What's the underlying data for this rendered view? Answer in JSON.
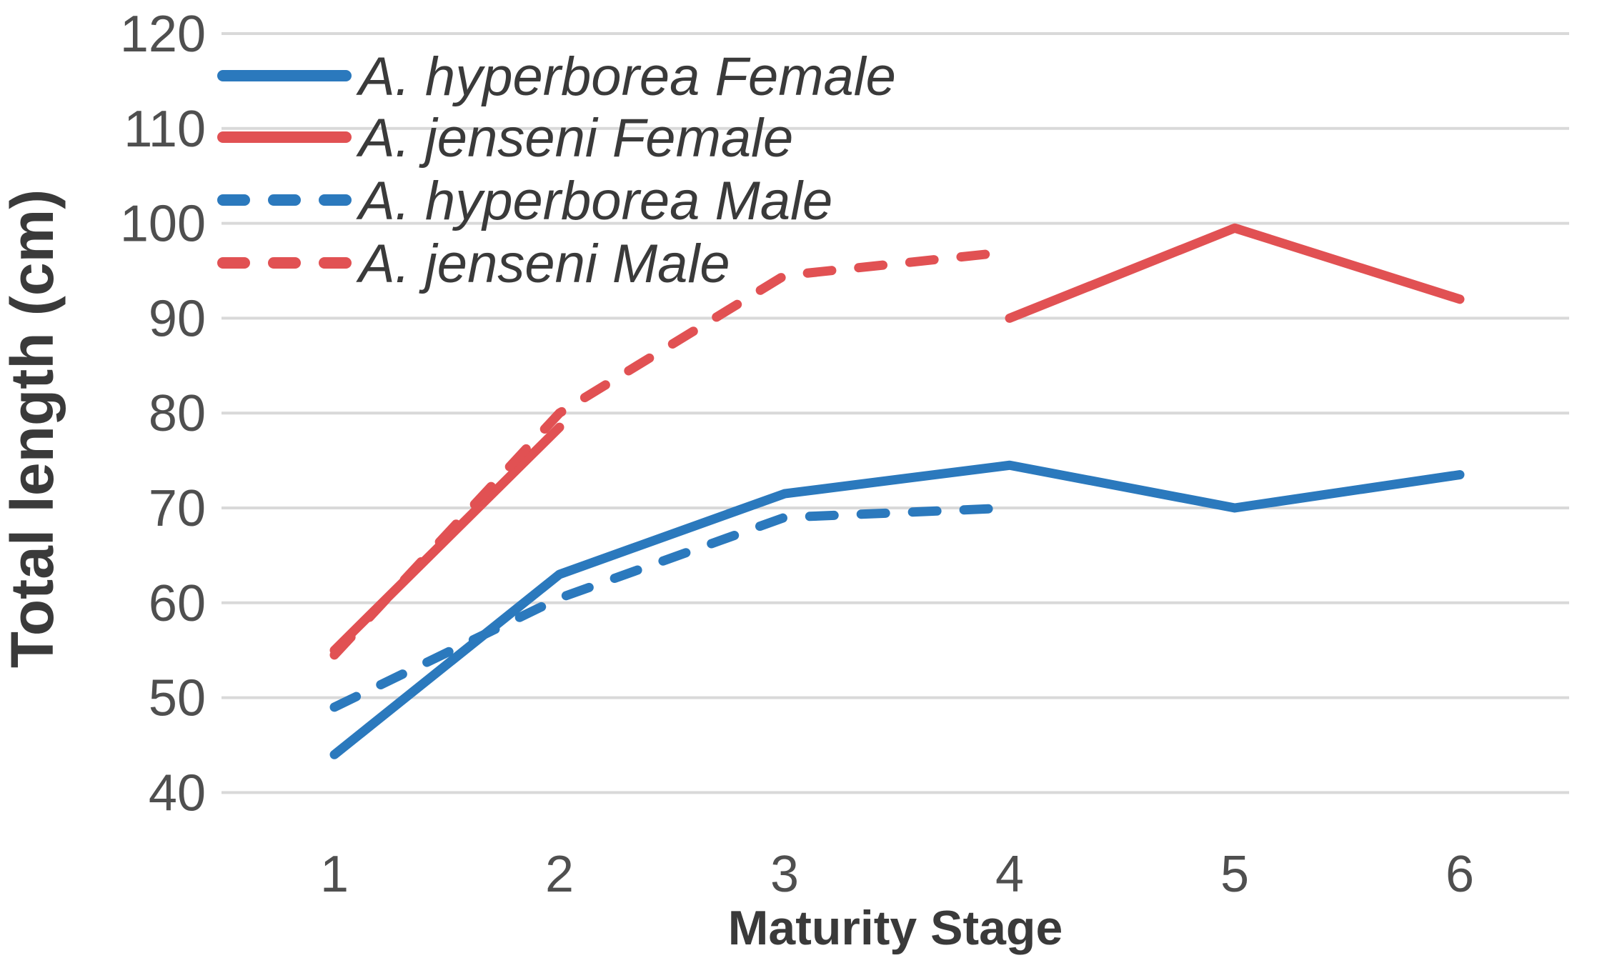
{
  "chart_data": {
    "type": "line",
    "title": "",
    "xlabel": "Maturity Stage",
    "ylabel": "Total length (cm)",
    "categories": [
      "1",
      "2",
      "3",
      "4",
      "5",
      "6"
    ],
    "ylim": [
      40,
      120
    ],
    "ytick_step": 10,
    "yticks": [
      40,
      50,
      60,
      70,
      80,
      90,
      100,
      110,
      120
    ],
    "grid": "horizontal-only",
    "legend_position": "top-left-inside",
    "series": [
      {
        "name": "A. hyperborea Female",
        "style": "solid",
        "color": "#2B79BD",
        "values": [
          44,
          63,
          71.5,
          74.5,
          70,
          73.5
        ]
      },
      {
        "name": "A. jenseni Female",
        "style": "solid",
        "color": "#E15153",
        "values": [
          55,
          78.5,
          null,
          90,
          99.5,
          92
        ]
      },
      {
        "name": "A. hyperborea Male",
        "style": "dashed",
        "color": "#2B79BD",
        "values": [
          49,
          60.5,
          69,
          70,
          null,
          null
        ]
      },
      {
        "name": "A. jenseni Male",
        "style": "dashed",
        "color": "#E15153",
        "values": [
          54.5,
          80,
          94.5,
          97,
          null,
          null
        ]
      }
    ],
    "colors": {
      "grid": "#D9D9D9",
      "tick_text": "#4F4F4F",
      "title_text": "#3A3A3A",
      "legend_text": "#3A3A3A",
      "background": "#FFFFFF"
    }
  }
}
